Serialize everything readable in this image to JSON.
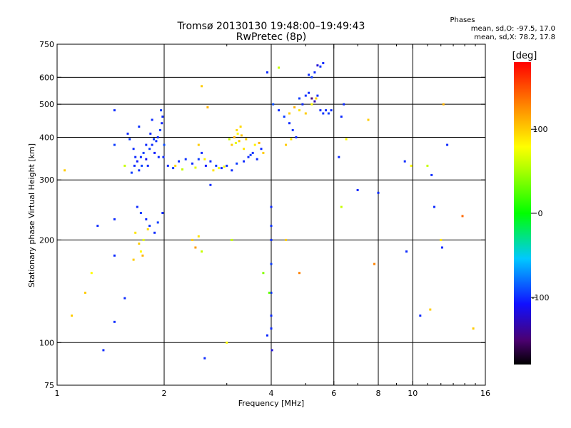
{
  "chart_data": {
    "type": "scatter",
    "title": "Tromsø 20130130 19:48:00–19:49:43",
    "subtitle": "RwPretec (8p)",
    "xlabel": "Frequency [MHz]",
    "ylabel": "Stationary phase Virtual Height [km]",
    "x_scale": "log",
    "y_scale": "log",
    "xlim": [
      1,
      16
    ],
    "ylim": [
      75,
      750
    ],
    "x_ticks": [
      1,
      2,
      4,
      6,
      8,
      10,
      16
    ],
    "x_tick_labels": [
      "1",
      "2",
      "4",
      "6",
      "8",
      "10",
      "16"
    ],
    "x_grid": [
      2,
      4,
      6,
      8,
      10
    ],
    "y_ticks": [
      75,
      100,
      200,
      300,
      400,
      500,
      600,
      750
    ],
    "y_tick_labels": [
      "75",
      "100",
      "200",
      "300",
      "400",
      "500",
      "600",
      "750"
    ],
    "y_grid": [
      100,
      200,
      300,
      400,
      500,
      600
    ],
    "grid": true,
    "stats": {
      "heading": "Phases",
      "line_o": "mean, sd,O: -97.5, 17.0",
      "line_x": "mean, sd,X:  78.2, 17.8"
    },
    "colorbar": {
      "label": "[deg]",
      "min": -180,
      "max": 180,
      "ticks": [
        100,
        0,
        -100
      ],
      "tick_labels": [
        "100",
        "0",
        "-100"
      ]
    },
    "points": [
      [
        1.62,
        315,
        -95
      ],
      [
        1.65,
        330,
        -100
      ],
      [
        1.68,
        340,
        -105
      ],
      [
        1.7,
        320,
        -98
      ],
      [
        1.72,
        350,
        -100
      ],
      [
        1.75,
        360,
        -95
      ],
      [
        1.78,
        345,
        -110
      ],
      [
        1.8,
        330,
        -100
      ],
      [
        1.82,
        370,
        -95
      ],
      [
        1.85,
        380,
        -100
      ],
      [
        1.88,
        360,
        -105
      ],
      [
        1.9,
        390,
        -98
      ],
      [
        1.92,
        400,
        -100
      ],
      [
        1.95,
        420,
        -95
      ],
      [
        1.97,
        440,
        -102
      ],
      [
        1.98,
        460,
        -100
      ],
      [
        2.0,
        380,
        -90
      ],
      [
        1.93,
        350,
        -100
      ],
      [
        1.87,
        395,
        -95
      ],
      [
        1.83,
        410,
        -100
      ],
      [
        1.78,
        380,
        -100
      ],
      [
        1.73,
        330,
        -92
      ],
      [
        1.66,
        350,
        -100
      ],
      [
        1.64,
        370,
        -100
      ],
      [
        1.6,
        395,
        -96
      ],
      [
        1.58,
        410,
        -100
      ],
      [
        1.7,
        430,
        -98
      ],
      [
        1.85,
        450,
        -100
      ],
      [
        1.96,
        480,
        -95
      ],
      [
        1.99,
        350,
        -100
      ],
      [
        2.05,
        330,
        -100
      ],
      [
        2.12,
        325,
        -95
      ],
      [
        2.2,
        340,
        -100
      ],
      [
        2.3,
        345,
        -98
      ],
      [
        2.4,
        335,
        -100
      ],
      [
        2.5,
        345,
        -95
      ],
      [
        2.55,
        360,
        -100
      ],
      [
        2.62,
        330,
        -105
      ],
      [
        2.7,
        340,
        -100
      ],
      [
        2.8,
        330,
        -95
      ],
      [
        2.9,
        325,
        -100
      ],
      [
        3.0,
        330,
        -98
      ],
      [
        3.1,
        320,
        -100
      ],
      [
        3.2,
        335,
        -95
      ],
      [
        3.35,
        340,
        -100
      ],
      [
        3.45,
        350,
        -100
      ],
      [
        3.55,
        360,
        -98
      ],
      [
        3.65,
        345,
        -100
      ],
      [
        3.75,
        370,
        -100
      ],
      [
        3.5,
        355,
        -96
      ],
      [
        2.25,
        322,
        60
      ],
      [
        2.45,
        326,
        70
      ],
      [
        2.6,
        345,
        85
      ],
      [
        2.75,
        320,
        90
      ],
      [
        2.85,
        325,
        75
      ],
      [
        2.95,
        328,
        80
      ],
      [
        2.15,
        330,
        95
      ],
      [
        3.1,
        380,
        100
      ],
      [
        3.15,
        400,
        110
      ],
      [
        3.2,
        420,
        95
      ],
      [
        3.25,
        390,
        100
      ],
      [
        3.3,
        405,
        105
      ],
      [
        3.35,
        370,
        90
      ],
      [
        3.22,
        410,
        80
      ],
      [
        3.18,
        385,
        70
      ],
      [
        3.4,
        395,
        100
      ],
      [
        3.6,
        380,
        85
      ],
      [
        3.7,
        385,
        110
      ],
      [
        3.8,
        360,
        100
      ],
      [
        3.05,
        395,
        60
      ],
      [
        3.28,
        430,
        95
      ],
      [
        4.05,
        500,
        -90
      ],
      [
        4.2,
        480,
        -100
      ],
      [
        4.35,
        460,
        -95
      ],
      [
        4.5,
        440,
        -100
      ],
      [
        4.6,
        420,
        -98
      ],
      [
        4.7,
        400,
        -100
      ],
      [
        4.8,
        520,
        -95
      ],
      [
        4.9,
        500,
        -100
      ],
      [
        5.0,
        530,
        -98
      ],
      [
        5.1,
        540,
        -100
      ],
      [
        5.2,
        520,
        -150
      ],
      [
        5.3,
        510,
        -130
      ],
      [
        5.4,
        530,
        -100
      ],
      [
        5.5,
        480,
        -100
      ],
      [
        5.6,
        470,
        -98
      ],
      [
        5.7,
        480,
        -100
      ],
      [
        5.8,
        470,
        -95
      ],
      [
        5.9,
        480,
        -100
      ],
      [
        5.6,
        660,
        -100
      ],
      [
        5.5,
        645,
        -98
      ],
      [
        5.4,
        650,
        -120
      ],
      [
        5.3,
        620,
        -100
      ],
      [
        5.2,
        600,
        -95
      ],
      [
        5.1,
        610,
        -100
      ],
      [
        4.5,
        470,
        100
      ],
      [
        4.65,
        490,
        110
      ],
      [
        4.8,
        480,
        90
      ],
      [
        5.0,
        470,
        100
      ],
      [
        5.2,
        500,
        80
      ],
      [
        5.35,
        520,
        100
      ],
      [
        4.4,
        380,
        100
      ],
      [
        4.55,
        395,
        90
      ],
      [
        1.68,
        250,
        -100
      ],
      [
        1.72,
        240,
        -95
      ],
      [
        1.78,
        230,
        -100
      ],
      [
        1.82,
        220,
        -98
      ],
      [
        1.88,
        210,
        -100
      ],
      [
        1.92,
        225,
        -95
      ],
      [
        1.98,
        240,
        -100
      ],
      [
        1.66,
        210,
        90
      ],
      [
        1.7,
        195,
        100
      ],
      [
        1.72,
        185,
        80
      ],
      [
        1.75,
        200,
        70
      ],
      [
        1.8,
        215,
        95
      ],
      [
        1.64,
        175,
        100
      ],
      [
        1.74,
        180,
        110
      ],
      [
        2.4,
        200,
        100
      ],
      [
        2.45,
        190,
        120
      ],
      [
        2.5,
        205,
        90
      ],
      [
        2.55,
        185,
        60
      ],
      [
        1.45,
        480,
        -100
      ],
      [
        1.45,
        380,
        -95
      ],
      [
        1.45,
        230,
        -100
      ],
      [
        1.45,
        180,
        -100
      ],
      [
        1.45,
        115,
        -100
      ],
      [
        1.55,
        135,
        -100
      ],
      [
        1.55,
        330,
        60
      ],
      [
        1.3,
        220,
        -100
      ],
      [
        1.35,
        95,
        -100
      ],
      [
        1.1,
        120,
        100
      ],
      [
        1.2,
        140,
        100
      ],
      [
        1.25,
        160,
        80
      ],
      [
        1.05,
        320,
        100
      ],
      [
        2.55,
        565,
        100
      ],
      [
        2.65,
        490,
        110
      ],
      [
        2.5,
        380,
        100
      ],
      [
        2.7,
        290,
        -100
      ],
      [
        2.6,
        90,
        -100
      ],
      [
        3.0,
        100,
        80
      ],
      [
        3.1,
        200,
        60
      ],
      [
        4.0,
        250,
        -100
      ],
      [
        4.0,
        220,
        -98
      ],
      [
        4.0,
        200,
        -100
      ],
      [
        4.0,
        170,
        -95
      ],
      [
        4.0,
        140,
        -100
      ],
      [
        4.0,
        120,
        -100
      ],
      [
        4.0,
        110,
        -100
      ],
      [
        3.9,
        105,
        -100
      ],
      [
        4.02,
        95,
        -120
      ],
      [
        3.8,
        160,
        40
      ],
      [
        3.95,
        140,
        30
      ],
      [
        4.4,
        200,
        100
      ],
      [
        4.8,
        160,
        130
      ],
      [
        3.9,
        620,
        -100
      ],
      [
        4.2,
        640,
        60
      ],
      [
        6.2,
        350,
        -100
      ],
      [
        6.3,
        460,
        -100
      ],
      [
        6.4,
        500,
        -100
      ],
      [
        6.5,
        395,
        80
      ],
      [
        6.3,
        250,
        60
      ],
      [
        7.0,
        280,
        -100
      ],
      [
        7.5,
        450,
        100
      ],
      [
        7.8,
        170,
        130
      ],
      [
        8.0,
        275,
        -100
      ],
      [
        9.5,
        340,
        -100
      ],
      [
        9.6,
        185,
        -100
      ],
      [
        9.9,
        330,
        80
      ],
      [
        11.0,
        330,
        60
      ],
      [
        11.3,
        310,
        -100
      ],
      [
        11.5,
        250,
        -100
      ],
      [
        12.0,
        200,
        90
      ],
      [
        12.1,
        190,
        -100
      ],
      [
        12.5,
        380,
        -100
      ],
      [
        13.8,
        235,
        140
      ],
      [
        14.8,
        110,
        100
      ],
      [
        11.2,
        125,
        100
      ],
      [
        10.5,
        120,
        -100
      ],
      [
        12.2,
        500,
        110
      ]
    ]
  }
}
